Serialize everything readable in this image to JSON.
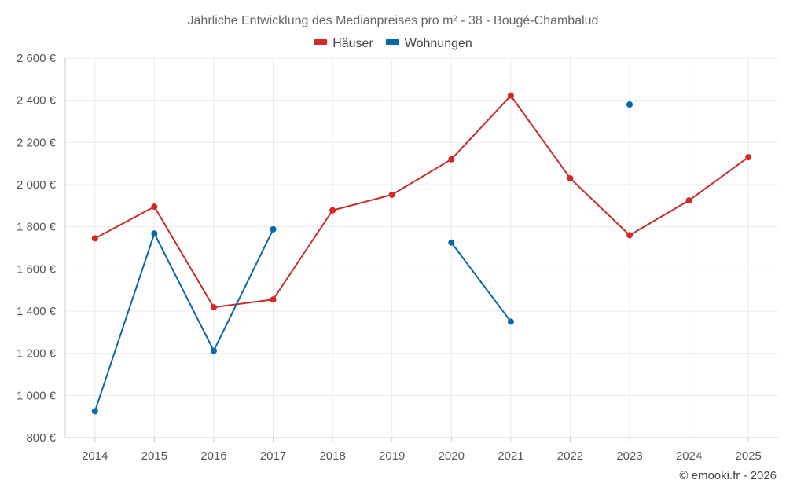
{
  "chart_data": {
    "type": "line",
    "title": "Jährliche Entwicklung des Medianpreises pro m² - 38 - Bougé-Chambalud",
    "categories": [
      "2014",
      "2015",
      "2016",
      "2017",
      "2018",
      "2019",
      "2020",
      "2021",
      "2022",
      "2023",
      "2024",
      "2025"
    ],
    "series": [
      {
        "name": "Häuser",
        "color": "#d62728",
        "values": [
          1745,
          1895,
          1418,
          1455,
          1878,
          1952,
          2120,
          2422,
          2030,
          1760,
          1925,
          2130
        ]
      },
      {
        "name": "Wohnungen",
        "color": "#0868ac",
        "values": [
          925,
          1768,
          1212,
          1788,
          null,
          null,
          1725,
          1350,
          null,
          2380,
          null,
          null
        ]
      }
    ],
    "ylim": [
      800,
      2600
    ],
    "yticks": [
      800,
      1000,
      1200,
      1400,
      1600,
      1800,
      2000,
      2200,
      2400,
      2600
    ],
    "ytick_labels": [
      "800 €",
      "1 000 €",
      "1 200 €",
      "1 400 €",
      "1 600 €",
      "1 800 €",
      "2 000 €",
      "2 200 €",
      "2 400 €",
      "2 600 €"
    ],
    "xlabel": "",
    "ylabel": "",
    "grid": true,
    "legend_position": "top-center"
  },
  "footer": {
    "copyright": "© emooki.fr - 2026"
  }
}
